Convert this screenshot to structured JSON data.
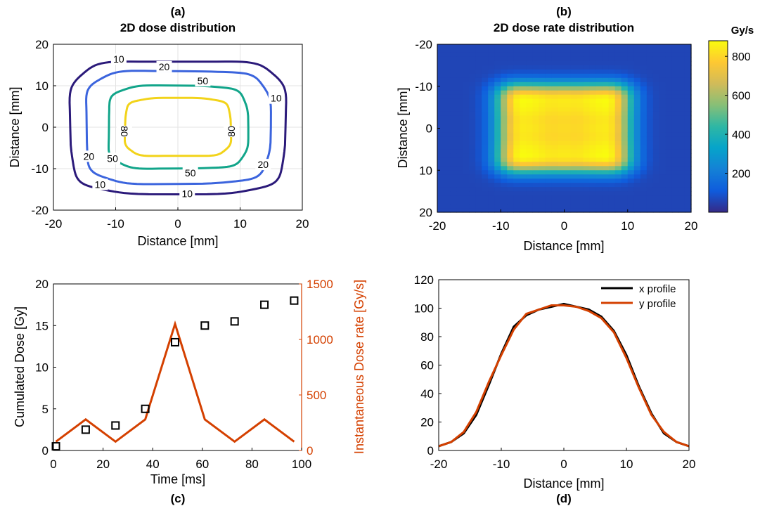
{
  "chart_data": [
    {
      "id": "a",
      "type": "contour",
      "panel_label": "(a)",
      "title": "2D dose distribution",
      "xlabel": "Distance [mm]",
      "ylabel": "Distance [mm]",
      "xlim": [
        -20,
        20
      ],
      "ylim": [
        -20,
        20
      ],
      "xticks": [
        -20,
        -10,
        0,
        10,
        20
      ],
      "yticks": [
        -20,
        -10,
        0,
        10,
        20
      ],
      "grid": true,
      "contours": [
        {
          "level": 10,
          "label": "10",
          "color": "#2b1a7a",
          "halfwidth_x": 17.3,
          "halfheight_y": 16.0,
          "labels": [
            {
              "text": "10",
              "x": -9.5,
              "y": 16.4
            },
            {
              "text": "10",
              "x": 15.8,
              "y": 7.0
            },
            {
              "text": "10",
              "x": -12.5,
              "y": -13.8
            },
            {
              "text": "10",
              "x": 1.5,
              "y": -16.0
            }
          ]
        },
        {
          "level": 20,
          "label": "20",
          "color": "#3b64dd",
          "halfwidth_x": 14.8,
          "halfheight_y": 13.6,
          "labels": [
            {
              "text": "20",
              "x": -2.2,
              "y": 14.6
            },
            {
              "text": "20",
              "x": -14.3,
              "y": -7.0
            },
            {
              "text": "20",
              "x": 13.7,
              "y": -9.0
            }
          ]
        },
        {
          "level": 50,
          "label": "50",
          "color": "#12a58a",
          "halfwidth_x": 11.2,
          "halfheight_y": 10.0,
          "labels": [
            {
              "text": "50",
              "x": 4.0,
              "y": 11.2
            },
            {
              "text": "50",
              "x": -10.5,
              "y": -7.5
            },
            {
              "text": "50",
              "x": 2.0,
              "y": -11.0
            }
          ]
        },
        {
          "level": 80,
          "label": "80",
          "color": "#f2d31a",
          "halfwidth_x": 8.5,
          "halfheight_y": 7.0,
          "labels": [
            {
              "text": "80",
              "x": -8.6,
              "y": -1.0
            },
            {
              "text": "80",
              "x": 8.6,
              "y": -1.0
            }
          ]
        }
      ]
    },
    {
      "id": "b",
      "type": "heatmap",
      "panel_label": "(b)",
      "title": "2D dose rate distribution",
      "xlabel": "Distance [mm]",
      "ylabel": "Distance [mm]",
      "xlim": [
        -20,
        20
      ],
      "ylim": [
        -20,
        20
      ],
      "y_reversed": true,
      "xticks": [
        -20,
        -10,
        0,
        10,
        20
      ],
      "yticks": [
        -20,
        -10,
        0,
        10,
        20
      ],
      "colorbar": {
        "label": "Gy/s",
        "range": [
          0,
          880
        ],
        "ticks": [
          200,
          400,
          600,
          800
        ],
        "colormap": "parula"
      },
      "spot_grid": {
        "x": [
          -8,
          -4,
          0,
          4,
          8
        ],
        "y": [
          -8,
          -4,
          0,
          4,
          8
        ],
        "spot_sigma_mm": 2.2,
        "peak_dose_rate": 880,
        "min_dose_rate": 60
      }
    },
    {
      "id": "c",
      "type": "combo",
      "panel_label": "(c)",
      "xlabel": "Time [ms]",
      "ylabel_left": "Cumulated Dose [Gy]",
      "ylabel_right": "Instantaneous Dose rate [Gy/s]",
      "xlim": [
        0,
        100
      ],
      "ylim_left": [
        0,
        20
      ],
      "ylim_right": [
        0,
        1500
      ],
      "xticks": [
        0,
        20,
        40,
        60,
        80,
        100
      ],
      "yticks_left": [
        0,
        5,
        10,
        15,
        20
      ],
      "yticks_right": [
        0,
        500,
        1000,
        1500
      ],
      "right_color": "#d44000",
      "series": [
        {
          "name": "Cumulated Dose",
          "axis": "left",
          "kind": "marker-square",
          "color": "#000000",
          "x": [
            1,
            13,
            25,
            37,
            49,
            61,
            73,
            85,
            97
          ],
          "y": [
            0.5,
            2.5,
            3.0,
            5.0,
            13.0,
            15.0,
            15.5,
            17.5,
            18.0
          ]
        },
        {
          "name": "Instantaneous Dose rate",
          "axis": "right",
          "kind": "line",
          "color": "#d44000",
          "x": [
            1,
            13,
            25,
            37,
            49,
            61,
            73,
            85,
            97
          ],
          "y": [
            80,
            280,
            80,
            280,
            1140,
            280,
            80,
            280,
            80
          ]
        }
      ]
    },
    {
      "id": "d",
      "type": "line",
      "panel_label": "(d)",
      "xlabel": "Distance [mm]",
      "ylabel": "",
      "xlim": [
        -20,
        20
      ],
      "ylim": [
        0,
        120
      ],
      "xticks": [
        -20,
        -10,
        0,
        10,
        20
      ],
      "yticks": [
        0,
        20,
        40,
        60,
        80,
        100,
        120
      ],
      "legend": "top-right",
      "x": [
        -20,
        -18,
        -16,
        -14,
        -12,
        -10,
        -8,
        -6,
        -4,
        -2,
        0,
        2,
        4,
        6,
        8,
        10,
        12,
        14,
        16,
        18,
        20
      ],
      "series": [
        {
          "name": "x profile",
          "color": "#000000",
          "values": [
            3,
            6,
            12,
            25,
            46,
            68,
            87,
            95,
            99,
            101,
            103,
            101,
            99,
            94,
            84,
            67,
            45,
            26,
            12,
            6,
            3
          ]
        },
        {
          "name": "y profile",
          "color": "#d44000",
          "values": [
            3,
            6,
            13,
            27,
            48,
            67,
            85,
            96,
            99,
            102,
            102,
            101,
            98,
            93,
            83,
            65,
            44,
            25,
            13,
            6,
            3
          ]
        }
      ]
    }
  ]
}
